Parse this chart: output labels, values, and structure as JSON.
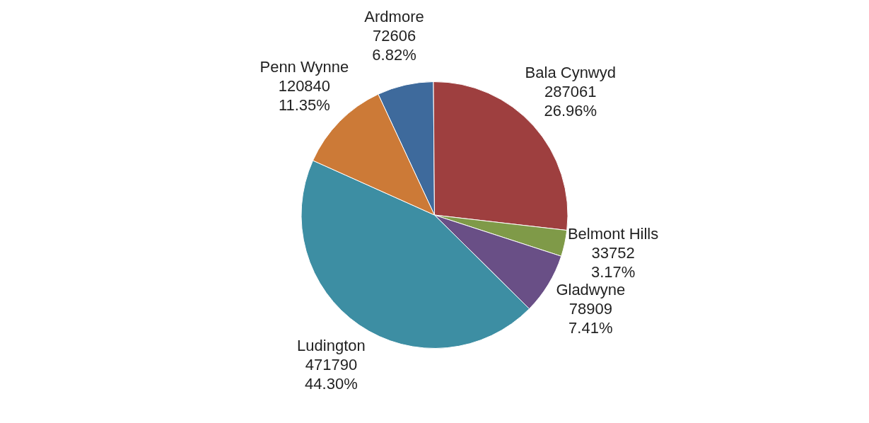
{
  "chart_data": {
    "type": "pie",
    "categories": [
      "Ardmore",
      "Bala Cynwyd",
      "Belmont Hills",
      "Gladwyne",
      "Ludington",
      "Penn Wynne"
    ],
    "values": [
      72606,
      287061,
      33752,
      78909,
      471790,
      120840
    ],
    "value_labels": [
      "72606\n6.82%",
      "287061\n26.96%",
      "33752\n3.17%",
      "78909\n7.41%",
      "471790\n44.30%",
      "120840\n11.35%"
    ],
    "colors": [
      "#3e6a9c",
      "#9e3f3f",
      "#7f9a48",
      "#694f86",
      "#3d8ea3",
      "#cc7a37"
    ],
    "legend": false
  }
}
